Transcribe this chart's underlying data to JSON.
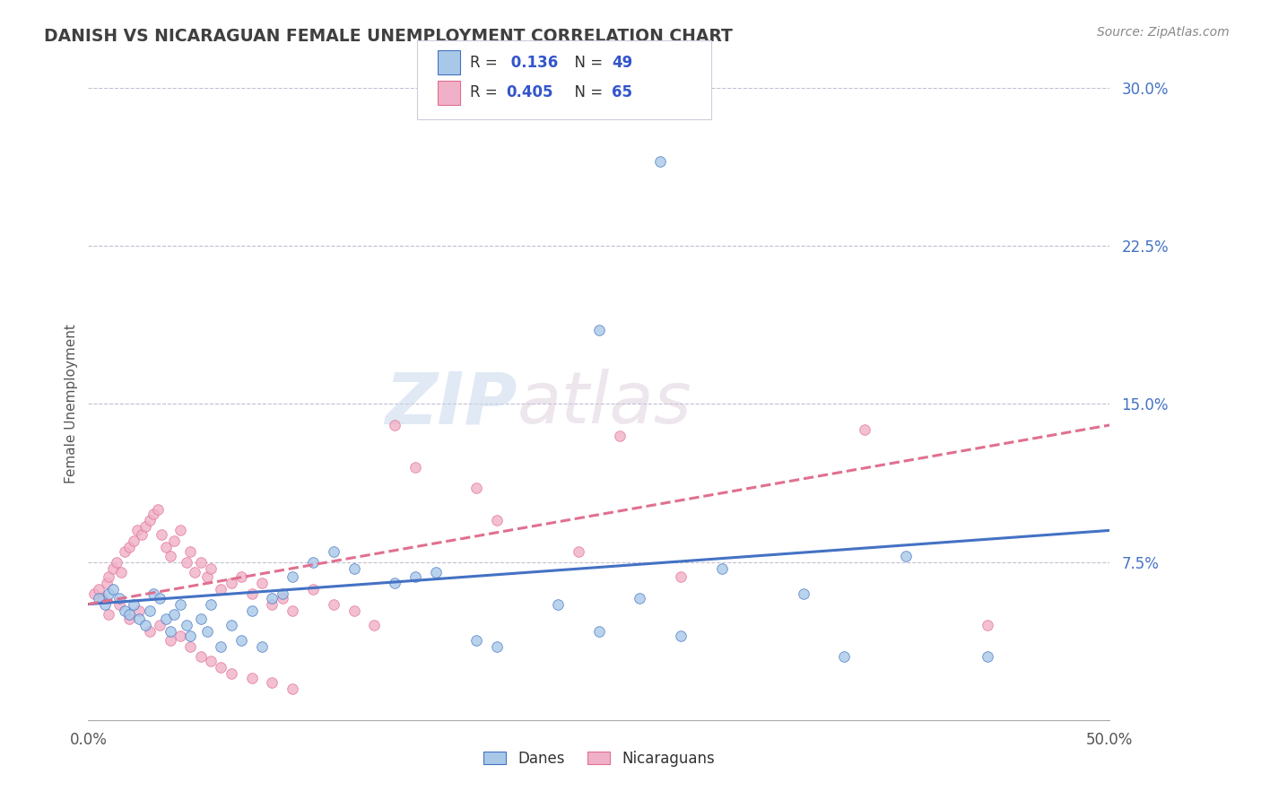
{
  "title": "DANISH VS NICARAGUAN FEMALE UNEMPLOYMENT CORRELATION CHART",
  "source_text": "Source: ZipAtlas.com",
  "ylabel": "Female Unemployment",
  "xlim": [
    0.0,
    0.5
  ],
  "ylim": [
    0.0,
    0.3
  ],
  "danes_color": "#a8c8e8",
  "nicaraguans_color": "#f0b0c8",
  "danes_line_color": "#4472c4",
  "nicaraguans_line_color": "#e07090",
  "background_color": "#ffffff",
  "grid_color": "#c0c0d0",
  "watermark_zip": "ZIP",
  "watermark_atlas": "atlas",
  "legend_R_danes": "0.136",
  "legend_N_danes": "49",
  "legend_R_nicaraguans": "0.405",
  "legend_N_nicaraguans": "65",
  "danes_x": [
    0.005,
    0.008,
    0.01,
    0.012,
    0.015,
    0.018,
    0.02,
    0.022,
    0.025,
    0.028,
    0.03,
    0.032,
    0.035,
    0.038,
    0.04,
    0.042,
    0.045,
    0.048,
    0.05,
    0.055,
    0.058,
    0.06,
    0.065,
    0.07,
    0.075,
    0.08,
    0.085,
    0.09,
    0.095,
    0.1,
    0.11,
    0.12,
    0.13,
    0.15,
    0.16,
    0.17,
    0.19,
    0.2,
    0.23,
    0.25,
    0.27,
    0.29,
    0.31,
    0.35,
    0.37,
    0.4,
    0.44,
    0.28,
    0.25
  ],
  "danes_y": [
    0.058,
    0.055,
    0.06,
    0.062,
    0.058,
    0.052,
    0.05,
    0.055,
    0.048,
    0.045,
    0.052,
    0.06,
    0.058,
    0.048,
    0.042,
    0.05,
    0.055,
    0.045,
    0.04,
    0.048,
    0.042,
    0.055,
    0.035,
    0.045,
    0.038,
    0.052,
    0.035,
    0.058,
    0.06,
    0.068,
    0.075,
    0.08,
    0.072,
    0.065,
    0.068,
    0.07,
    0.038,
    0.035,
    0.055,
    0.042,
    0.058,
    0.04,
    0.072,
    0.06,
    0.03,
    0.078,
    0.03,
    0.265,
    0.185
  ],
  "nicaraguans_x": [
    0.003,
    0.005,
    0.007,
    0.009,
    0.01,
    0.012,
    0.014,
    0.016,
    0.018,
    0.02,
    0.022,
    0.024,
    0.026,
    0.028,
    0.03,
    0.032,
    0.034,
    0.036,
    0.038,
    0.04,
    0.042,
    0.045,
    0.048,
    0.05,
    0.052,
    0.055,
    0.058,
    0.06,
    0.065,
    0.07,
    0.075,
    0.08,
    0.085,
    0.09,
    0.095,
    0.1,
    0.11,
    0.12,
    0.13,
    0.14,
    0.15,
    0.16,
    0.01,
    0.015,
    0.02,
    0.025,
    0.03,
    0.035,
    0.04,
    0.045,
    0.05,
    0.055,
    0.06,
    0.065,
    0.07,
    0.08,
    0.09,
    0.1,
    0.19,
    0.2,
    0.24,
    0.26,
    0.29,
    0.38,
    0.44
  ],
  "nicaraguans_y": [
    0.06,
    0.062,
    0.058,
    0.065,
    0.068,
    0.072,
    0.075,
    0.07,
    0.08,
    0.082,
    0.085,
    0.09,
    0.088,
    0.092,
    0.095,
    0.098,
    0.1,
    0.088,
    0.082,
    0.078,
    0.085,
    0.09,
    0.075,
    0.08,
    0.07,
    0.075,
    0.068,
    0.072,
    0.062,
    0.065,
    0.068,
    0.06,
    0.065,
    0.055,
    0.058,
    0.052,
    0.062,
    0.055,
    0.052,
    0.045,
    0.14,
    0.12,
    0.05,
    0.055,
    0.048,
    0.052,
    0.042,
    0.045,
    0.038,
    0.04,
    0.035,
    0.03,
    0.028,
    0.025,
    0.022,
    0.02,
    0.018,
    0.015,
    0.11,
    0.095,
    0.08,
    0.135,
    0.068,
    0.138,
    0.045
  ]
}
